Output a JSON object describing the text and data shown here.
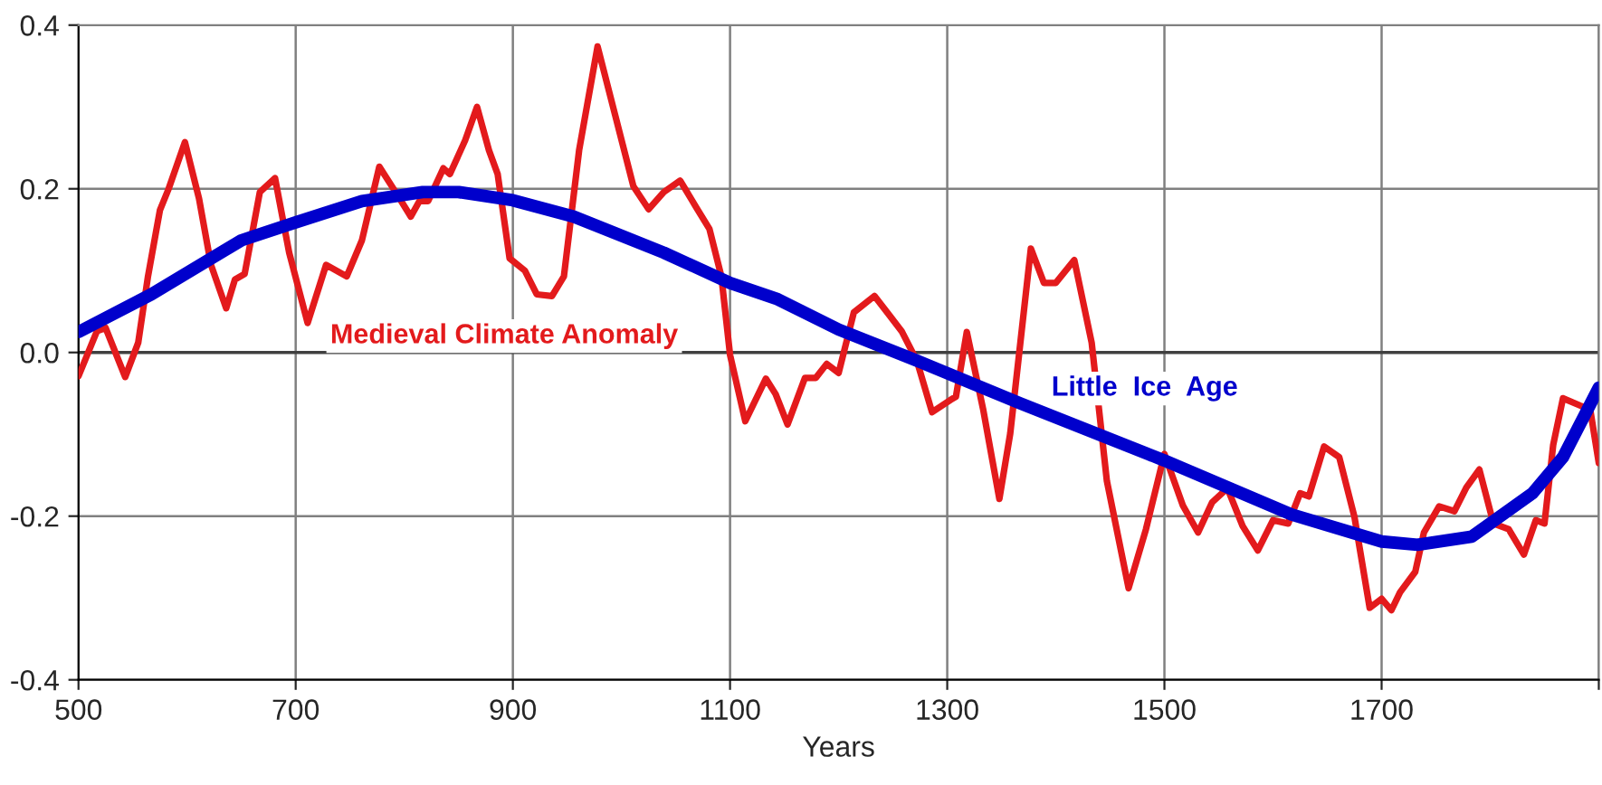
{
  "chart_data": {
    "type": "line",
    "xlabel": "Years",
    "annotations": [
      "Medieval Climate Anomaly",
      "Little  Ice  Age"
    ],
    "series": [
      {
        "color": "#e31a1c",
        "x": [
          500,
          517,
          525,
          543,
          555,
          564,
          575,
          583,
          598,
          611,
          622,
          636,
          644,
          653,
          667,
          681,
          694,
          711,
          728,
          747,
          761,
          777,
          792,
          806,
          814,
          822,
          836,
          842,
          856,
          867,
          878,
          886,
          897,
          911,
          922,
          936,
          947,
          961,
          978,
          994,
          1011,
          1025,
          1039,
          1054,
          1069,
          1081,
          1092,
          1100,
          1114,
          1133,
          1142,
          1153,
          1169,
          1179,
          1189,
          1200,
          1214,
          1233,
          1247,
          1258,
          1272,
          1286,
          1303,
          1308,
          1318,
          1333,
          1348,
          1358,
          1377,
          1389,
          1400,
          1417,
          1433,
          1447,
          1467,
          1483,
          1500,
          1517,
          1531,
          1544,
          1558,
          1572,
          1586,
          1600,
          1614,
          1625,
          1633,
          1647,
          1661,
          1675,
          1689,
          1700,
          1709,
          1717,
          1731,
          1739,
          1753,
          1767,
          1778,
          1790,
          1803,
          1817,
          1831,
          1842,
          1850,
          1858,
          1867,
          1883,
          1892,
          1900
        ],
        "values": [
          -0.029,
          0.026,
          0.03,
          -0.03,
          0.012,
          0.093,
          0.174,
          0.2,
          0.257,
          0.188,
          0.107,
          0.054,
          0.089,
          0.096,
          0.196,
          0.213,
          0.122,
          0.036,
          0.107,
          0.093,
          0.137,
          0.227,
          0.196,
          0.166,
          0.185,
          0.185,
          0.225,
          0.218,
          0.259,
          0.3,
          0.247,
          0.218,
          0.115,
          0.1,
          0.071,
          0.069,
          0.093,
          0.247,
          0.374,
          0.291,
          0.203,
          0.175,
          0.196,
          0.21,
          0.177,
          0.151,
          0.093,
          -0.003,
          -0.084,
          -0.032,
          -0.051,
          -0.088,
          -0.031,
          -0.031,
          -0.014,
          -0.025,
          0.049,
          0.069,
          0.045,
          0.026,
          -0.01,
          -0.073,
          -0.058,
          -0.054,
          0.025,
          -0.069,
          -0.179,
          -0.099,
          0.127,
          0.085,
          0.085,
          0.113,
          0.012,
          -0.157,
          -0.288,
          -0.216,
          -0.124,
          -0.187,
          -0.22,
          -0.183,
          -0.166,
          -0.212,
          -0.242,
          -0.205,
          -0.209,
          -0.172,
          -0.176,
          -0.115,
          -0.128,
          -0.201,
          -0.312,
          -0.301,
          -0.315,
          -0.293,
          -0.268,
          -0.22,
          -0.188,
          -0.194,
          -0.165,
          -0.143,
          -0.209,
          -0.216,
          -0.247,
          -0.205,
          -0.209,
          -0.113,
          -0.056,
          -0.065,
          -0.069,
          -0.135
        ]
      },
      {
        "color": "#0000cc",
        "x": [
          500,
          567,
          650,
          700,
          761,
          817,
          850,
          900,
          956,
          1039,
          1100,
          1144,
          1200,
          1272,
          1367,
          1500,
          1617,
          1700,
          1733,
          1783,
          1839,
          1867,
          1900
        ],
        "values": [
          0.025,
          0.071,
          0.137,
          0.159,
          0.185,
          0.196,
          0.196,
          0.186,
          0.166,
          0.122,
          0.085,
          0.065,
          0.028,
          -0.01,
          -0.062,
          -0.132,
          -0.198,
          -0.231,
          -0.235,
          -0.225,
          -0.172,
          -0.128,
          -0.043
        ]
      }
    ],
    "xlim": [
      500,
      1900
    ],
    "xticks": [
      500,
      700,
      900,
      1100,
      1300,
      1500,
      1700,
      {
        "value": 1900,
        "label": null
      }
    ],
    "ylim": [
      -0.4,
      0.4
    ],
    "yticks": [
      {
        "value": -0.4,
        "label": "-0.4"
      },
      {
        "value": -0.2,
        "label": "-0.2"
      },
      {
        "value": 0,
        "label": "0.0"
      },
      {
        "value": 0.2,
        "label": "0.2"
      },
      {
        "value": 0.4,
        "label": "0.4"
      }
    ],
    "ref_lines": [
      {
        "axis": "y",
        "value": 0,
        "color": "#404040"
      }
    ],
    "grid": true
  }
}
